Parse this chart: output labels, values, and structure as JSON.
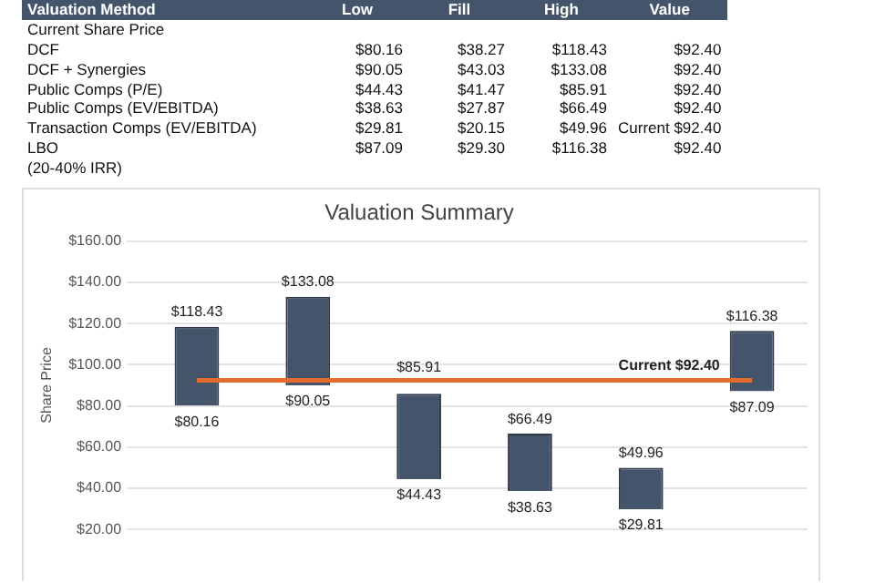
{
  "chart_data": [
    {
      "type": "other",
      "title": "Valuation Method",
      "categories": [
        "Low",
        "Fill",
        "High",
        "Value"
      ],
      "y_categories": [
        "Current Share Price",
        "DCF",
        "DCF + Synergies",
        "Public Comps (P/E)",
        "Public Comps (EV/EBITDA)",
        "Transaction Comps (EV/EBITDA)",
        "LBO",
        "(20-40% IRR)"
      ],
      "cell_labels": [
        [
          null,
          null,
          null,
          null
        ],
        [
          "$80.16",
          "$38.27",
          "$118.43",
          "$92.40"
        ],
        [
          "$90.05",
          "$43.03",
          "$133.08",
          "$92.40"
        ],
        [
          "$44.43",
          "$41.47",
          "$85.91",
          "$92.40"
        ],
        [
          "$38.63",
          "$27.87",
          "$66.49",
          "$92.40"
        ],
        [
          "$29.81",
          "$20.15",
          "$49.96",
          "Current $92.40"
        ],
        [
          "$87.09",
          "$29.30",
          "$116.38",
          "$92.40"
        ],
        [
          null,
          null,
          null,
          null
        ]
      ]
    },
    {
      "type": "bar",
      "title": "Valuation Summary",
      "ylabel": "Share Price",
      "categories": [
        null,
        null,
        null,
        null,
        null,
        null
      ],
      "series": [
        {
          "type": "bar",
          "color": "#44546a",
          "base": [
            80.16,
            90.05,
            44.43,
            38.63,
            29.81,
            87.09
          ],
          "values": [
            38.27,
            43.03,
            41.47,
            27.87,
            20.15,
            29.3
          ]
        },
        {
          "type": "line",
          "color": "#e46c2c",
          "values": [
            92.4,
            92.4,
            92.4,
            92.4,
            92.4,
            92.4
          ]
        }
      ],
      "ylim": [
        20,
        160
      ],
      "yticks": [
        {
          "value": 20,
          "label": "$20.00"
        },
        {
          "value": 40,
          "label": "$40.00"
        },
        {
          "value": 60,
          "label": "$60.00"
        },
        {
          "value": 80,
          "label": "$80.00"
        },
        {
          "value": 100,
          "label": "$100.00"
        },
        {
          "value": 120,
          "label": "$120.00"
        },
        {
          "value": 140,
          "label": "$140.00"
        },
        {
          "value": 160,
          "label": "$160.00"
        }
      ],
      "grid": "y",
      "legend": false,
      "marker": "none",
      "line_style": "solid",
      "annotations": [
        {
          "text": "$118.43",
          "y": 118.43
        },
        {
          "text": "$133.08",
          "y": 133.08
        },
        {
          "text": "$85.91",
          "y": 85.91
        },
        {
          "text": "$66.49",
          "y": 66.49
        },
        {
          "text": "$49.96",
          "y": 49.96
        },
        {
          "text": "$116.38",
          "y": 116.38
        },
        {
          "text": "$80.16",
          "y": 80.16
        },
        {
          "text": "$90.05",
          "y": 90.05
        },
        {
          "text": "$44.43",
          "y": 44.43
        },
        {
          "text": "$38.63",
          "y": 38.63
        },
        {
          "text": "$29.81",
          "y": 29.81
        },
        {
          "text": "$87.09",
          "y": 87.09
        },
        {
          "text": "Current $92.40",
          "y": 92.4
        }
      ]
    }
  ]
}
